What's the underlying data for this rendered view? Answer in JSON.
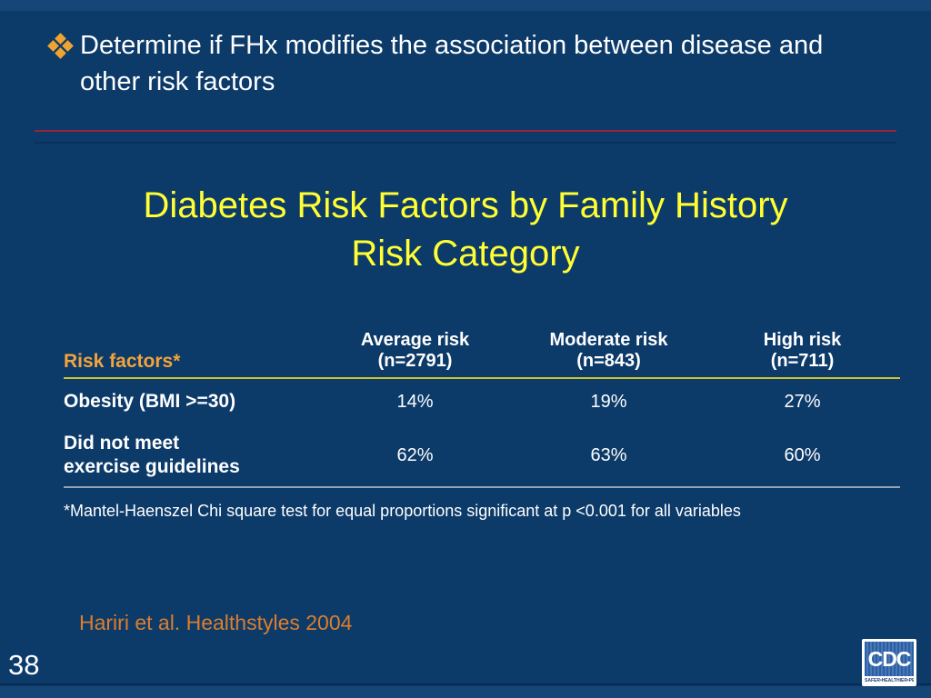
{
  "colors": {
    "background": "#0c3a69",
    "band_blue": "#164678",
    "red_divider": "#992339",
    "title_yellow": "#ffff33",
    "header_orange": "#f2a43c",
    "citation_orange": "#dd7e2c",
    "bullet_gold": "#f0a330",
    "yellow_rule": "#cdc32d",
    "gray_rule": "#94a3b3",
    "cdc_blue": "#2a5fa5"
  },
  "bullet": {
    "icon": "diamond-cluster-bullet",
    "text": "Determine if FHx modifies the association between disease and\nother risk factors"
  },
  "title": "Diabetes Risk Factors by Family History\nRisk Category",
  "table": {
    "row_header_label": "Risk factors*",
    "columns": [
      {
        "label": "Average risk",
        "sub": "(n=2791)"
      },
      {
        "label": "Moderate risk",
        "sub": "(n=843)"
      },
      {
        "label": "High risk",
        "sub": "(n=711)"
      }
    ],
    "rows": [
      {
        "label": "Obesity (BMI >=30)",
        "values": [
          "14%",
          "19%",
          "27%"
        ]
      },
      {
        "label": "Did not meet\nexercise guidelines",
        "values": [
          "62%",
          "63%",
          "60%"
        ]
      }
    ]
  },
  "footnote": "*Mantel-Haenszel Chi square test for equal proportions significant at p <0.001 for all variables",
  "citation": "Hariri et al. Healthstyles 2004",
  "page_number": "38",
  "cdc_logo": {
    "acronym": "CDC",
    "tagline": "SAFER•HEALTHIER•PEOPLE™"
  }
}
